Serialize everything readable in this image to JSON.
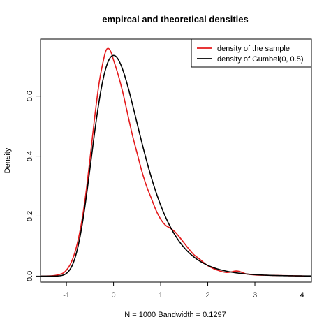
{
  "chart_data": {
    "type": "line",
    "title": "empircal and theoretical densities",
    "xlabel": "N = 1000   Bandwidth = 0.1297",
    "ylabel": "Density",
    "xlim": [
      -1.55,
      4.2
    ],
    "ylim": [
      -0.02,
      0.79
    ],
    "xticks": [
      "-1",
      "0",
      "1",
      "2",
      "3",
      "4"
    ],
    "yticks": [
      "0.0",
      "0.2",
      "0.4",
      "0.6"
    ],
    "legend_position": "top-right",
    "grid": false,
    "series": [
      {
        "name": "density of the sample",
        "color": "#e41a1c",
        "x": [
          -1.55,
          -1.3,
          -1.1,
          -1.0,
          -0.9,
          -0.8,
          -0.7,
          -0.6,
          -0.5,
          -0.4,
          -0.3,
          -0.2,
          -0.15,
          -0.1,
          -0.05,
          0.0,
          0.1,
          0.2,
          0.3,
          0.4,
          0.5,
          0.6,
          0.7,
          0.8,
          0.9,
          1.0,
          1.1,
          1.2,
          1.3,
          1.4,
          1.5,
          1.6,
          1.7,
          1.8,
          1.9,
          2.0,
          2.2,
          2.4,
          2.6,
          2.7,
          2.8,
          3.0,
          3.2,
          3.5,
          4.2
        ],
        "y": [
          0.0,
          0.001,
          0.008,
          0.02,
          0.045,
          0.09,
          0.16,
          0.26,
          0.39,
          0.53,
          0.65,
          0.73,
          0.755,
          0.758,
          0.745,
          0.72,
          0.67,
          0.61,
          0.54,
          0.47,
          0.41,
          0.35,
          0.3,
          0.26,
          0.22,
          0.19,
          0.17,
          0.16,
          0.148,
          0.13,
          0.11,
          0.09,
          0.072,
          0.06,
          0.047,
          0.035,
          0.02,
          0.012,
          0.017,
          0.014,
          0.008,
          0.004,
          0.003,
          0.002,
          0.0
        ]
      },
      {
        "name": "density of Gumbel(0, 0.5)",
        "color": "#000000",
        "function": "gumbel",
        "mu": 0,
        "beta": 0.5,
        "x_range": [
          -1.55,
          4.2
        ]
      }
    ]
  }
}
